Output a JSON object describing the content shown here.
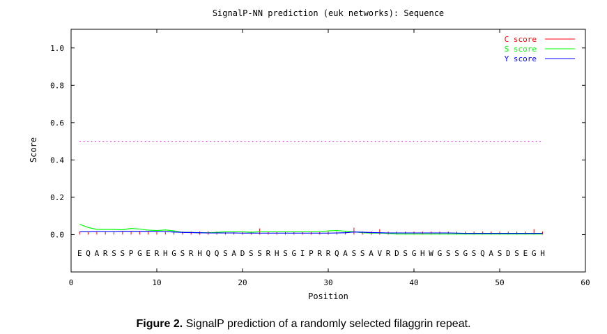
{
  "chart_data": {
    "type": "line",
    "title": "SignalP-NN prediction (euk networks): Sequence",
    "xlabel": "Position",
    "ylabel": "Score",
    "xlim": [
      0,
      60
    ],
    "ylim": [
      -0.2,
      1.1
    ],
    "xticks": [
      0,
      10,
      20,
      30,
      40,
      50,
      60
    ],
    "yticks": [
      "0.0",
      "0.2",
      "0.4",
      "0.6",
      "0.8",
      "1.0"
    ],
    "legend_position": "top-right",
    "threshold": 0.5,
    "sequence": [
      "E",
      "Q",
      "A",
      "R",
      "S",
      "S",
      "P",
      "G",
      "E",
      "R",
      "H",
      "G",
      "S",
      "R",
      "H",
      "Q",
      "Q",
      "S",
      "A",
      "D",
      "S",
      "S",
      "R",
      "H",
      "S",
      "G",
      "I",
      "P",
      "R",
      "R",
      "Q",
      "A",
      "S",
      "S",
      "A",
      "V",
      "R",
      "D",
      "S",
      "G",
      "H",
      "W",
      "G",
      "S",
      "S",
      "G",
      "S",
      "Q",
      "A",
      "S",
      "D",
      "S",
      "E",
      "G",
      "H"
    ],
    "series": [
      {
        "name": "C score",
        "color": "#ff0000",
        "values": [
          0.005,
          0.005,
          0.005,
          0.005,
          0.005,
          0.006,
          0.005,
          0.005,
          0.006,
          0.005,
          0.006,
          0.005,
          0.005,
          0.005,
          0.005,
          0.006,
          0.005,
          0.005,
          0.006,
          0.005,
          0.005,
          0.022,
          0.005,
          0.005,
          0.006,
          0.005,
          0.005,
          0.006,
          0.005,
          0.005,
          0.005,
          0.005,
          0.026,
          0.005,
          0.006,
          0.018,
          0.005,
          0.005,
          0.005,
          0.005,
          0.005,
          0.005,
          0.005,
          0.005,
          0.005,
          0.005,
          0.005,
          0.005,
          0.005,
          0.005,
          0.005,
          0.005,
          0.005,
          0.018,
          0.005
        ]
      },
      {
        "name": "S score",
        "color": "#00ff00",
        "values": [
          0.055,
          0.038,
          0.028,
          0.028,
          0.028,
          0.026,
          0.033,
          0.03,
          0.024,
          0.022,
          0.025,
          0.02,
          0.012,
          0.012,
          0.01,
          0.01,
          0.012,
          0.015,
          0.015,
          0.015,
          0.013,
          0.015,
          0.015,
          0.015,
          0.015,
          0.015,
          0.015,
          0.015,
          0.015,
          0.02,
          0.022,
          0.018,
          0.015,
          0.01,
          0.008,
          0.008,
          0.006,
          0.003,
          0.003,
          0.003,
          0.003,
          0.003,
          0.003,
          0.003,
          0.003,
          0.003,
          0.003,
          0.003,
          0.003,
          0.003,
          0.003,
          0.003,
          0.003,
          0.003,
          0.003
        ]
      },
      {
        "name": "Y score",
        "color": "#0000ff",
        "values": [
          0.015,
          0.015,
          0.016,
          0.016,
          0.016,
          0.017,
          0.017,
          0.017,
          0.017,
          0.016,
          0.016,
          0.014,
          0.012,
          0.011,
          0.01,
          0.009,
          0.009,
          0.009,
          0.009,
          0.008,
          0.008,
          0.008,
          0.008,
          0.008,
          0.008,
          0.008,
          0.008,
          0.008,
          0.008,
          0.008,
          0.009,
          0.01,
          0.014,
          0.013,
          0.011,
          0.01,
          0.009,
          0.009,
          0.009,
          0.009,
          0.009,
          0.009,
          0.009,
          0.009,
          0.008,
          0.007,
          0.007,
          0.007,
          0.007,
          0.007,
          0.007,
          0.007,
          0.007,
          0.007,
          0.007
        ]
      }
    ]
  },
  "caption": {
    "label": "Figure 2.",
    "text": " SignalP prediction of a randomly selected filaggrin repeat."
  }
}
